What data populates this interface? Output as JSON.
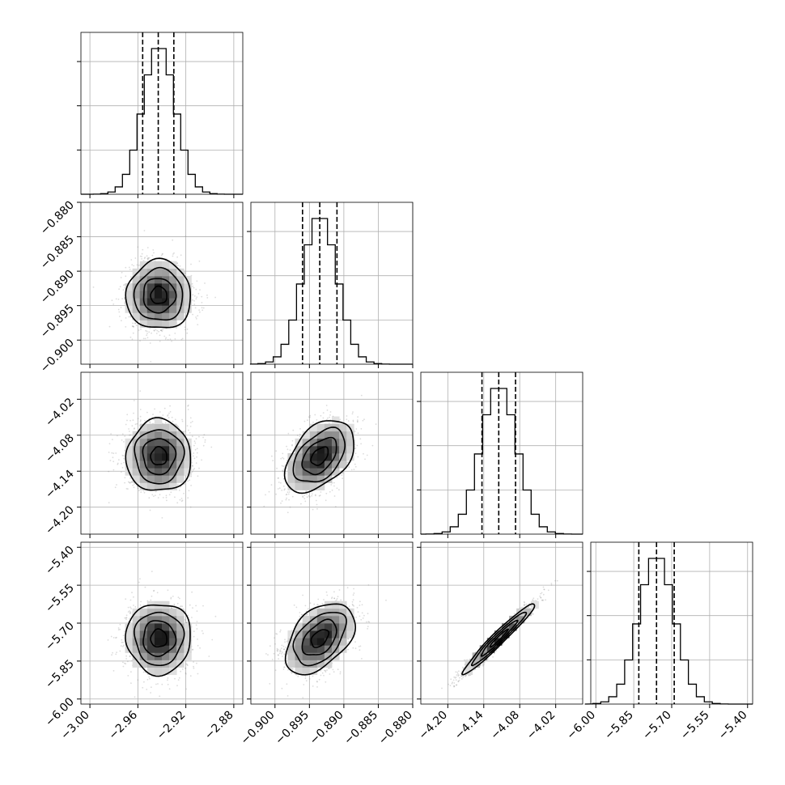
{
  "chart_data": {
    "type": "corner",
    "title": "",
    "parameters": [
      {
        "name": "",
        "median": -2.9425,
        "sigma": 0.0135,
        "range": [
          -3.0075,
          -2.8725
        ],
        "ticks": [
          -3.0,
          -2.96,
          -2.92,
          -2.88
        ],
        "tick_labels": [
          "−3.00",
          "−2.96",
          "−2.92",
          "−2.88"
        ],
        "quantiles": [
          -2.956,
          -2.943,
          -2.93
        ]
      },
      {
        "name": "",
        "median": -0.8935,
        "sigma": 0.0025,
        "range": [
          -0.9035,
          -0.88
        ],
        "ticks": [
          -0.9,
          -0.895,
          -0.89,
          -0.885,
          -0.88
        ],
        "tick_labels": [
          "−0.900",
          "−0.895",
          "−0.890",
          "−0.885",
          "−0.880"
        ],
        "quantiles": [
          -0.896,
          -0.8935,
          -0.891
        ]
      },
      {
        "name": "",
        "median": -4.115,
        "sigma": 0.03,
        "range": [
          -4.245,
          -3.975
        ],
        "ticks": [
          -4.2,
          -4.14,
          -4.08,
          -4.02
        ],
        "tick_labels": [
          "−4.20",
          "−4.14",
          "−4.08",
          "−4.02"
        ],
        "quantiles": [
          -4.143,
          -4.115,
          -4.087
        ]
      },
      {
        "name": "",
        "median": -5.76,
        "sigma": 0.07,
        "range": [
          -6.02,
          -5.38
        ],
        "ticks": [
          -6.0,
          -5.85,
          -5.7,
          -5.55,
          -5.4
        ],
        "tick_labels": [
          "−6.00",
          "−5.85",
          "−5.70",
          "−5.55",
          "−5.40"
        ],
        "quantiles": [
          -5.83,
          -5.76,
          -5.69
        ]
      }
    ],
    "correlations": [
      [
        1.0,
        0.0,
        0.0,
        0.0
      ],
      [
        0.0,
        1.0,
        0.45,
        0.45
      ],
      [
        0.0,
        0.45,
        1.0,
        0.97
      ],
      [
        0.0,
        0.45,
        0.97,
        1.0
      ]
    ],
    "contour_levels_sigma": [
      0.5,
      1.0,
      1.5,
      2.0
    ],
    "histogram_bins": 20,
    "grid": true,
    "colors": {
      "line": "#000000",
      "grid": "#b0b0b0",
      "points": "#808080"
    }
  }
}
